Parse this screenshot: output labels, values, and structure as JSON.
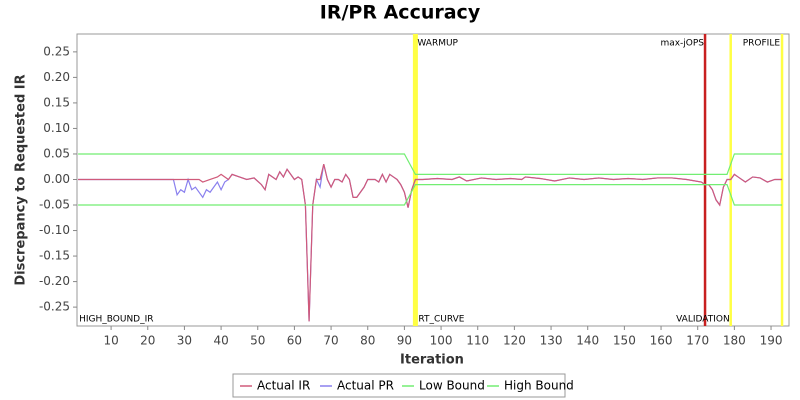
{
  "chart_data": {
    "type": "line",
    "title": "IR/PR Accuracy",
    "x_label": "Iteration",
    "y_label": "Discrepancy to Requested IR",
    "xlim": [
      0.7,
      194.9
    ],
    "ylim": [
      -0.287,
      0.285
    ],
    "xticks": [
      10,
      20,
      30,
      40,
      50,
      60,
      70,
      80,
      90,
      100,
      110,
      120,
      130,
      140,
      150,
      160,
      170,
      180,
      190
    ],
    "yticks": [
      0.25,
      {
        "value": 0.2,
        "label": "0.20"
      },
      0.15,
      {
        "value": 0.1,
        "label": "0.10"
      },
      0.05,
      {
        "value": 0,
        "label": "0.00"
      },
      -0.05,
      {
        "value": -0.1,
        "label": "-0.10"
      },
      -0.15,
      {
        "value": -0.2,
        "label": "-0.20"
      },
      -0.25
    ],
    "grid": false,
    "legend": "bottom",
    "series": [
      {
        "name": "Actual PR",
        "color": "#8a80ee",
        "x": [
          1,
          27,
          28,
          29,
          30,
          31,
          32,
          33,
          35,
          36,
          37,
          38,
          39,
          40,
          41,
          42,
          43,
          45,
          47,
          49,
          51,
          52,
          53,
          55,
          56,
          57,
          58,
          60,
          61,
          62,
          63,
          64,
          65,
          66,
          67,
          68,
          69,
          70,
          71,
          72,
          73,
          74,
          75,
          76,
          77,
          79,
          80,
          82,
          83,
          84,
          85,
          86,
          87,
          88,
          89,
          90,
          91,
          92,
          93,
          95,
          99,
          103,
          105,
          107,
          111,
          115,
          119,
          122,
          123,
          127,
          131,
          135,
          139,
          143,
          147,
          151,
          155,
          159,
          163,
          167,
          171,
          172,
          173,
          174,
          175,
          176,
          177,
          178,
          179,
          180,
          181,
          183,
          185,
          187,
          189,
          191,
          193
        ],
        "values": [
          0,
          0,
          -0.03,
          -0.02,
          -0.025,
          0,
          -0.02,
          -0.015,
          -0.035,
          -0.02,
          -0.025,
          -0.015,
          -0.005,
          -0.02,
          -0.005,
          0,
          0.01,
          0.005,
          0,
          0.003,
          -0.01,
          -0.02,
          0.01,
          0,
          0.015,
          0.005,
          0.02,
          0,
          0.005,
          0,
          -0.05,
          -0.278,
          -0.05,
          0,
          -0.015,
          0.03,
          0,
          -0.015,
          0,
          0,
          -0.005,
          0.01,
          0,
          -0.035,
          -0.035,
          -0.015,
          0,
          0,
          -0.005,
          0.01,
          -0.005,
          0.01,
          0.005,
          0,
          -0.01,
          -0.025,
          -0.055,
          -0.02,
          0,
          0,
          0.002,
          0,
          0.005,
          -0.003,
          0.003,
          0,
          0.002,
          0,
          0.005,
          0.002,
          -0.003,
          0.003,
          0,
          0.003,
          0,
          0.002,
          0,
          0.003,
          0.003,
          0,
          -0.005,
          -0.01,
          -0.01,
          -0.02,
          -0.04,
          -0.05,
          -0.015,
          0,
          0,
          0.01,
          0.005,
          -0.005,
          0.005,
          0.003,
          -0.005,
          0,
          0
        ]
      },
      {
        "name": "Actual IR",
        "color": "#d05a7a",
        "x": [
          1,
          27,
          30,
          32,
          34,
          35,
          37,
          39,
          40,
          42,
          43,
          45,
          47,
          49,
          51,
          52,
          53,
          55,
          56,
          57,
          58,
          60,
          61,
          62,
          63,
          64,
          65,
          66,
          67,
          68,
          69,
          70,
          71,
          72,
          73,
          74,
          75,
          76,
          77,
          79,
          80,
          82,
          83,
          84,
          85,
          86,
          87,
          88,
          89,
          90,
          91,
          92,
          93,
          95,
          99,
          103,
          105,
          107,
          111,
          115,
          119,
          122,
          123,
          127,
          131,
          135,
          139,
          143,
          147,
          151,
          155,
          159,
          163,
          167,
          171,
          172,
          173,
          174,
          175,
          176,
          177,
          178,
          179,
          180,
          181,
          183,
          185,
          187,
          189,
          191,
          193
        ],
        "values": [
          0,
          0,
          0,
          0,
          0,
          -0.005,
          0,
          0.005,
          0.01,
          0,
          0.01,
          0.005,
          0,
          0.003,
          -0.01,
          -0.02,
          0.01,
          0,
          0.015,
          0.005,
          0.02,
          0,
          0.005,
          0,
          -0.05,
          -0.278,
          -0.05,
          0,
          0,
          0.03,
          0,
          -0.015,
          0,
          0,
          -0.005,
          0.01,
          0,
          -0.035,
          -0.035,
          -0.015,
          0,
          0,
          -0.005,
          0.01,
          -0.005,
          0.01,
          0.005,
          0,
          -0.01,
          -0.025,
          -0.055,
          -0.02,
          0,
          0,
          0.002,
          0,
          0.005,
          -0.003,
          0.003,
          0,
          0.002,
          0,
          0.005,
          0.002,
          -0.003,
          0.003,
          0,
          0.003,
          0,
          0.002,
          0,
          0.003,
          0.003,
          0,
          -0.005,
          -0.01,
          -0.01,
          -0.02,
          -0.04,
          -0.05,
          -0.015,
          0,
          0,
          0.01,
          0.005,
          -0.005,
          0.005,
          0.003,
          -0.005,
          0,
          0
        ]
      },
      {
        "name": "Low Bound",
        "color": "#72ee72",
        "x": [
          1,
          90,
          93,
          178,
          180,
          193
        ],
        "values": [
          -0.05,
          -0.05,
          -0.01,
          -0.01,
          -0.05,
          -0.05
        ]
      },
      {
        "name": "High Bound",
        "color": "#72ee72",
        "x": [
          1,
          90,
          93,
          178,
          180,
          193
        ],
        "values": [
          0.05,
          0.05,
          0.01,
          0.01,
          0.05,
          0.05
        ]
      }
    ],
    "markers": [
      {
        "x": 93,
        "color": "#ffff44"
      },
      {
        "x": 172,
        "color": "#c82020"
      },
      {
        "x": 179,
        "color": "#ffff44"
      },
      {
        "x": 193,
        "color": "#ffff44"
      }
    ],
    "annotations": [
      {
        "x": 1,
        "text": "HIGH_BOUND_IR"
      },
      {
        "x": 93,
        "text": "WARMUP"
      },
      {
        "x": 93,
        "text": "RT_CURVE"
      },
      {
        "x": 172,
        "text": "max-jOPS"
      },
      {
        "x": 179,
        "text": "VALIDATION"
      },
      {
        "x": 193,
        "text": "PROFILE"
      }
    ]
  }
}
